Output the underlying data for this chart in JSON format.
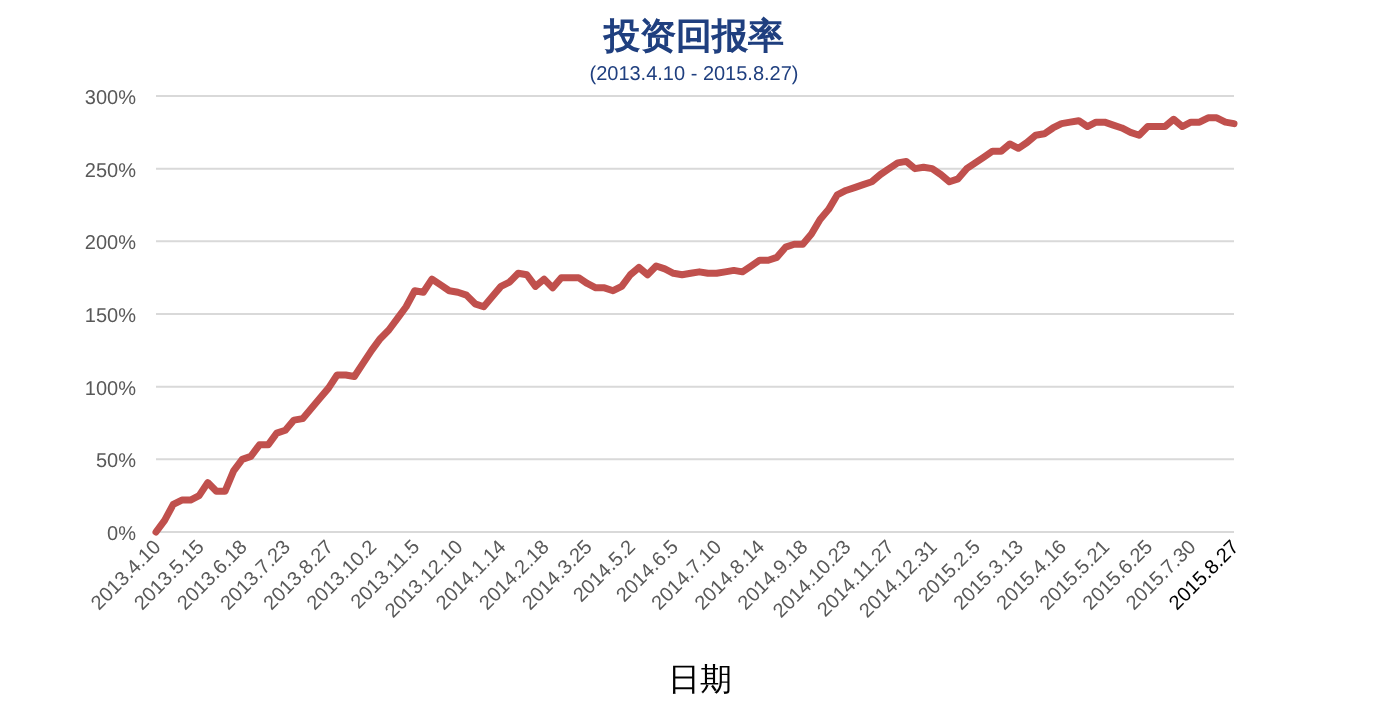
{
  "chart_data": {
    "type": "line",
    "title": "投资回报率",
    "subtitle": "(2013.4.10 - 2015.8.27)",
    "xlabel": "日期",
    "categories": [
      "2013.4.10",
      null,
      null,
      null,
      null,
      "2013.5.15",
      null,
      null,
      null,
      null,
      "2013.6.18",
      null,
      null,
      null,
      null,
      "2013.7.23",
      null,
      null,
      null,
      null,
      "2013.8.27",
      null,
      null,
      null,
      null,
      "2013.10.2",
      null,
      null,
      null,
      null,
      "2013.11.5",
      null,
      null,
      null,
      null,
      "2013.12.10",
      null,
      null,
      null,
      null,
      "2014.1.14",
      null,
      null,
      null,
      null,
      "2014.2.18",
      null,
      null,
      null,
      null,
      "2014.3.25",
      null,
      null,
      null,
      null,
      "2014.5.2",
      null,
      null,
      null,
      null,
      "2014.6.5",
      null,
      null,
      null,
      null,
      "2014.7.10",
      null,
      null,
      null,
      null,
      "2014.8.14",
      null,
      null,
      null,
      null,
      "2014.9.18",
      null,
      null,
      null,
      null,
      "2014.10.23",
      null,
      null,
      null,
      null,
      "2014.11.27",
      null,
      null,
      null,
      null,
      "2014.12.31",
      null,
      null,
      null,
      null,
      "2015.2.5",
      null,
      null,
      null,
      null,
      "2015.3.13",
      null,
      null,
      null,
      null,
      "2015.4.16",
      null,
      null,
      null,
      null,
      "2015.5.21",
      null,
      null,
      null,
      null,
      "2015.6.25",
      null,
      null,
      null,
      null,
      "2015.7.30",
      null,
      null,
      null,
      null,
      "2015.8.27"
    ],
    "series": [
      {
        "color": "#c0504d",
        "values": [
          0,
          8,
          19,
          22,
          22,
          25,
          34,
          28,
          28,
          42,
          50,
          52,
          60,
          60,
          68,
          70,
          77,
          78,
          85,
          92,
          99,
          108,
          108,
          107,
          116,
          125,
          133,
          139,
          147,
          155,
          166,
          165,
          174,
          170,
          166,
          165,
          163,
          157,
          155,
          162,
          169,
          172,
          178,
          177,
          169,
          174,
          168,
          175,
          175,
          175,
          171,
          168,
          168,
          166,
          169,
          177,
          182,
          177,
          183,
          181,
          178,
          177,
          178,
          179,
          178,
          178,
          179,
          180,
          179,
          183,
          187,
          187,
          189,
          196,
          198,
          198,
          205,
          215,
          222,
          232,
          235,
          237,
          239,
          241,
          246,
          250,
          254,
          255,
          250,
          251,
          250,
          246,
          241,
          243,
          250,
          254,
          258,
          262,
          262,
          267,
          264,
          268,
          273,
          274,
          278,
          281,
          282,
          283,
          279,
          282,
          282,
          280,
          278,
          275,
          273,
          279,
          279,
          279,
          284,
          279,
          282,
          282,
          285,
          285,
          282,
          281
        ]
      }
    ],
    "ylim": [
      0,
      300
    ],
    "yticks": [
      {
        "value": 0,
        "label": "0%"
      },
      {
        "value": 50,
        "label": "50%"
      },
      {
        "value": 100,
        "label": "100%"
      },
      {
        "value": 150,
        "label": "150%"
      },
      {
        "value": 200,
        "label": "200%"
      },
      {
        "value": 250,
        "label": "250%"
      },
      {
        "value": 300,
        "label": "300%"
      }
    ],
    "grid": "y"
  }
}
